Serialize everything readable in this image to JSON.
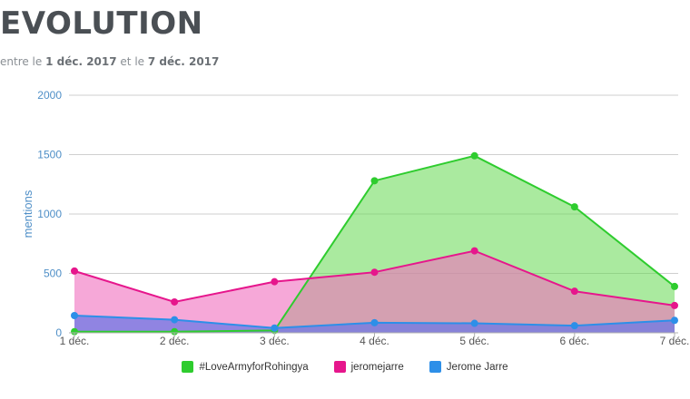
{
  "header": {
    "title": "EVOLUTION",
    "subtitle_prefix": "entre le ",
    "start_date": "1 déc. 2017",
    "subtitle_middle": " et le ",
    "end_date": "7 déc. 2017"
  },
  "chart_data": {
    "type": "area",
    "ylabel": "mentions",
    "xlabel": "",
    "ylim": [
      0,
      2000
    ],
    "yticks": [
      "0",
      "500",
      "1000",
      "1500",
      "2000"
    ],
    "categories": [
      "1 déc.",
      "2 déc.",
      "3 déc.",
      "4 déc.",
      "5 déc.",
      "6 déc.",
      "7 déc."
    ],
    "grid": true,
    "legend_position": "bottom",
    "series": [
      {
        "name": "#LoveArmyforRohingya",
        "color": "#2ecc2e",
        "fill": "rgba(100,216,80,0.55)",
        "values": [
          10,
          10,
          20,
          1280,
          1490,
          1060,
          390
        ]
      },
      {
        "name": "jeromejarre",
        "color": "#e6168c",
        "fill": "rgba(240,110,190,0.6)",
        "values": [
          520,
          260,
          430,
          510,
          690,
          350,
          230
        ]
      },
      {
        "name": "Jerome Jarre",
        "color": "#2d8fe8",
        "fill": "rgba(110,120,230,0.75)",
        "values": [
          145,
          110,
          40,
          85,
          80,
          60,
          105
        ]
      }
    ]
  }
}
